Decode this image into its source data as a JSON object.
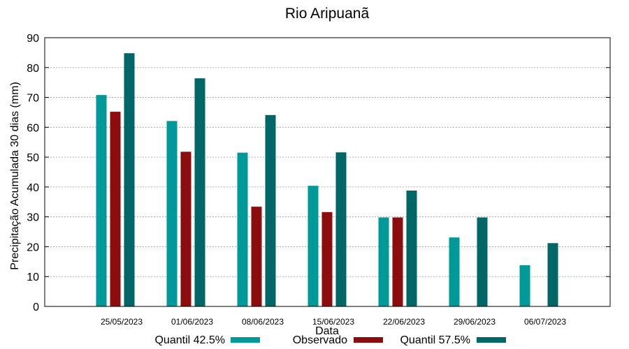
{
  "chart_data": {
    "type": "bar",
    "title": "Rio Aripuanã",
    "xlabel": "Data",
    "ylabel": "Precipitação Acumulada 30 dias (mm)",
    "ylim": [
      0,
      90
    ],
    "yticks": [
      0,
      10,
      20,
      30,
      40,
      50,
      60,
      70,
      80,
      90
    ],
    "grid": true,
    "categories": [
      "25/05/2023",
      "01/06/2023",
      "08/06/2023",
      "15/06/2023",
      "22/06/2023",
      "29/06/2023",
      "06/07/2023"
    ],
    "series": [
      {
        "name": "Quantil 42.5%",
        "color": "#009999",
        "values": [
          70.8,
          62.1,
          51.5,
          40.4,
          29.8,
          23.1,
          13.8
        ]
      },
      {
        "name": "Observado",
        "color": "#8b0d0d",
        "values": [
          65.2,
          51.8,
          33.4,
          31.6,
          29.8,
          null,
          null
        ]
      },
      {
        "name": "Quantil 57.5%",
        "color": "#006666",
        "values": [
          84.8,
          76.4,
          64.1,
          51.6,
          38.8,
          29.8,
          21.2
        ]
      }
    ]
  }
}
